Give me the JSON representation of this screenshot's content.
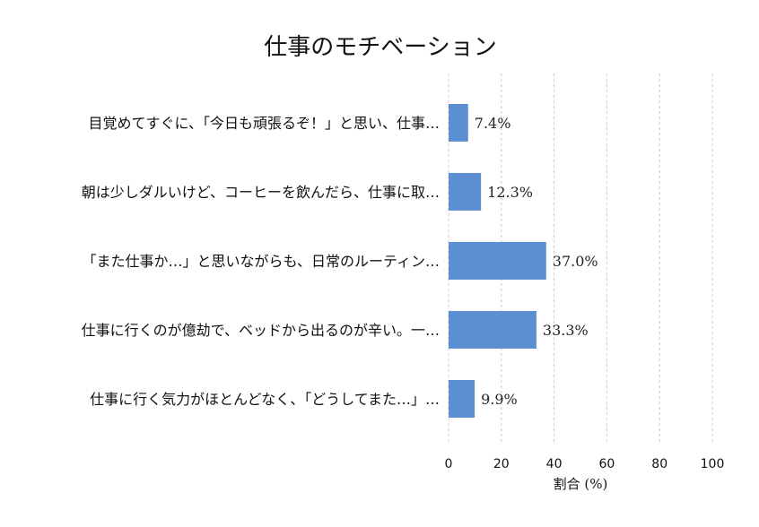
{
  "chart_data": {
    "type": "bar",
    "orientation": "horizontal",
    "title": "仕事のモチベーション",
    "xlabel": "割合 (%)",
    "ylabel": "",
    "xlim": [
      0,
      100
    ],
    "x_ticks": [
      0,
      20,
      40,
      60,
      80,
      100
    ],
    "grid": "vertical-dashed",
    "bar_color": "#5b8fd1",
    "categories": [
      "目覚めてすぐに、「今日も頑張るぞ！」と思い、仕事…",
      "朝は少しダルいけど、コーヒーを飲んだら、仕事に取…",
      "「また仕事か…」と思いながらも、日常のルーティン…",
      "仕事に行くのが億劫で、ベッドから出るのが辛い。一…",
      "仕事に行く気力がほとんどなく、「どうしてまた…」…"
    ],
    "values": [
      7.4,
      12.3,
      37.0,
      33.3,
      9.9
    ],
    "value_labels": [
      "7.4%",
      "12.3%",
      "37.0%",
      "33.3%",
      "9.9%"
    ]
  }
}
